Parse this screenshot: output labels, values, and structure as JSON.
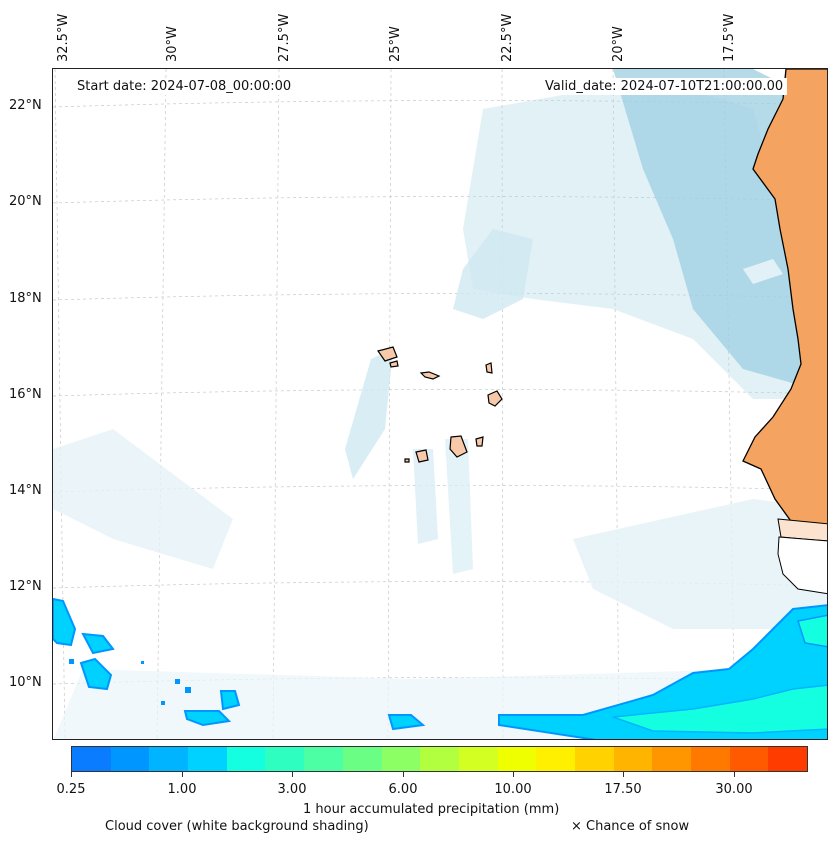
{
  "map": {
    "start_date": "Start date: 2024-07-08_00:00:00",
    "valid_date": "Valid_date: 2024-07-10T21:00:00.00",
    "longitude_labels": [
      "32.5°W",
      "30°W",
      "27.5°W",
      "25°W",
      "22.5°W",
      "20°W",
      "17.5°W"
    ],
    "latitude_labels": [
      "22°N",
      "20°N",
      "18°N",
      "16°N",
      "14°N",
      "12°N",
      "10°N"
    ],
    "land_color": "#f4a460",
    "cloud_color": "#add8e6",
    "gridlines": true
  },
  "colorbar": {
    "label": "1 hour accumulated precipitation (mm)",
    "ticks": [
      "0.25",
      "1.00",
      "3.00",
      "6.00",
      "10.00",
      "17.50",
      "30.00"
    ],
    "colors": [
      "#0a7cff",
      "#0096ff",
      "#00b4ff",
      "#00d2ff",
      "#14ffe0",
      "#2effc0",
      "#4cffa4",
      "#6aff84",
      "#8cff64",
      "#b2ff40",
      "#d4ff22",
      "#f0ff00",
      "#fff000",
      "#ffd200",
      "#ffb400",
      "#ff9600",
      "#ff7800",
      "#ff5a00",
      "#ff3c00"
    ]
  },
  "legend": {
    "cloud_cover": "Cloud cover (white background shading)",
    "snow": "× Chance of snow"
  }
}
